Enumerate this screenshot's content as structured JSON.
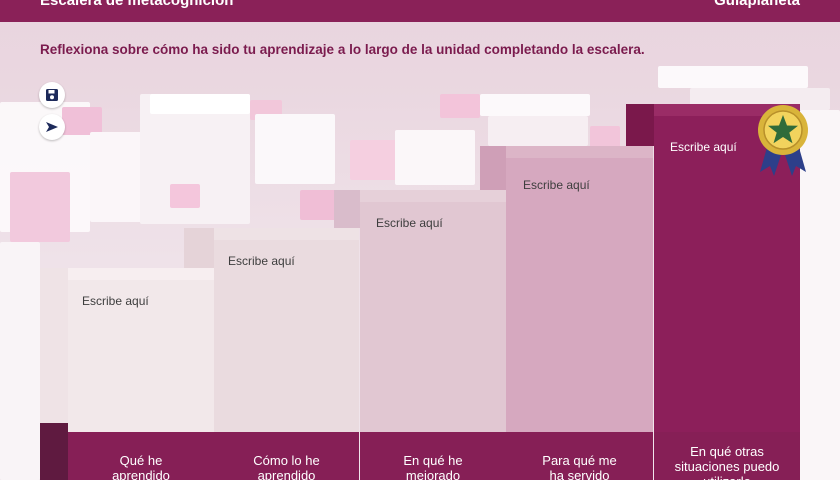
{
  "header": {
    "title": "Escalera de metacognición",
    "brand": "Guiaplaneta"
  },
  "instruction": "Reflexiona sobre cómo ha sido tu aprendizaje a lo largo de la unidad completando la escalera.",
  "toolbar": {
    "save_icon": "floppy-disk-icon",
    "send_icon": "send-arrow-icon"
  },
  "steps": [
    {
      "placeholder": "Escribe aquí",
      "caption_line1": "Qué he",
      "caption_line2": "aprendido",
      "color": "#f2e8ea"
    },
    {
      "placeholder": "Escribe aquí",
      "caption_line1": "Cómo lo he",
      "caption_line2": "aprendido",
      "color": "#eadbdf"
    },
    {
      "placeholder": "Escribe aquí",
      "caption_line1": "En qué he",
      "caption_line2": "mejorado",
      "color": "#e1c7d2"
    },
    {
      "placeholder": "Escribe aquí",
      "caption_line1": "Para qué me",
      "caption_line2": "ha servido",
      "color": "#d6a8bf"
    },
    {
      "placeholder": "Escribe aquí",
      "caption_line1": "En qué otras",
      "caption_line2": "situaciones puedo",
      "caption_line3": "utilizarlo",
      "color": "#8c1f5a"
    }
  ],
  "medal": {
    "icon": "star-medal-icon",
    "colors": {
      "gold": "#d9b43a",
      "green": "#2f6b3a",
      "ribbon": "#2d3f8a"
    }
  },
  "colors": {
    "header": "#8a2158",
    "band": "#861f56",
    "text_accent": "#7b1b4e"
  }
}
